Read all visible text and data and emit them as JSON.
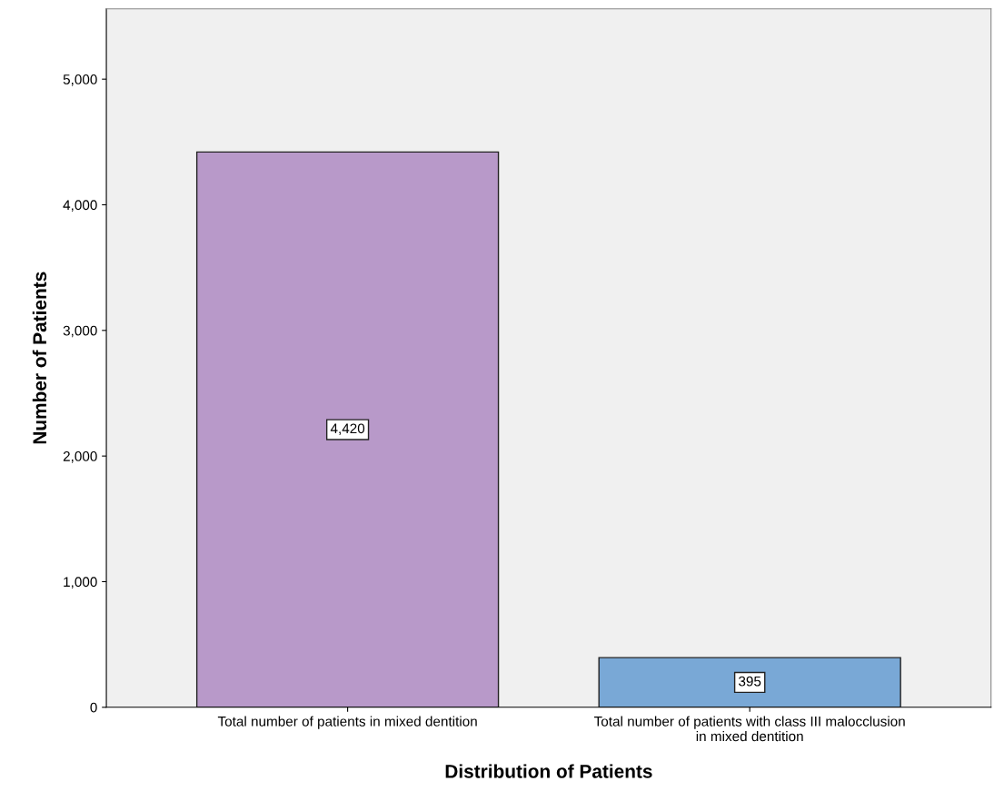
{
  "chart_data": {
    "type": "bar",
    "xlabel": "Distribution of Patients",
    "ylabel": "Number of Patients",
    "categories": [
      "Total number of patients in mixed dentition",
      "Total number of patients with class III malocclusion\nin mixed dentition"
    ],
    "values": [
      4420,
      395
    ],
    "colors": [
      "#b899c9",
      "#79a8d6"
    ],
    "value_labels": [
      "4,420",
      "395"
    ],
    "ylim": [
      0,
      5560
    ],
    "yticks": [
      {
        "value": 0,
        "label": "0"
      },
      {
        "value": 1000,
        "label": "1,000"
      },
      {
        "value": 2000,
        "label": "2,000"
      },
      {
        "value": 3000,
        "label": "3,000"
      },
      {
        "value": 4000,
        "label": "4,000"
      },
      {
        "value": 5000,
        "label": "5,000"
      }
    ],
    "grid": false
  }
}
